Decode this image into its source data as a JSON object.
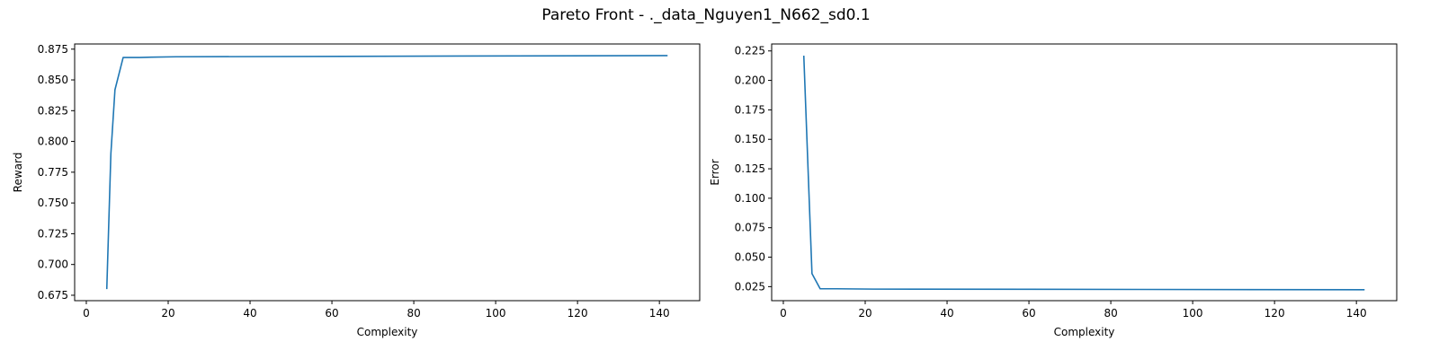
{
  "figure": {
    "title": "Pareto Front - ._data_Nguyen1_N662_sd0.1"
  },
  "colors": {
    "series": "#1f77b4",
    "axes": "#000000",
    "background": "#ffffff"
  },
  "chart_data": [
    {
      "type": "line",
      "title": "",
      "xlabel": "Complexity",
      "ylabel": "Reward",
      "xlim": [
        -2.85,
        149.85
      ],
      "ylim": [
        0.6706,
        0.8792
      ],
      "xticks": [
        0,
        20,
        40,
        60,
        80,
        100,
        120,
        140
      ],
      "yticks": [
        0.675,
        0.7,
        0.725,
        0.75,
        0.775,
        0.8,
        0.825,
        0.85,
        0.875
      ],
      "ytick_labels": [
        "0.675",
        "0.700",
        "0.725",
        "0.750",
        "0.775",
        "0.800",
        "0.825",
        "0.850",
        "0.875"
      ],
      "grid": false,
      "series": [
        {
          "x": [
            5,
            6,
            7,
            9,
            11,
            13,
            16,
            22,
            142
          ],
          "y": [
            0.68,
            0.79,
            0.842,
            0.8682,
            0.8682,
            0.8682,
            0.8685,
            0.8688,
            0.8698
          ]
        }
      ]
    },
    {
      "type": "line",
      "title": "",
      "xlabel": "Complexity",
      "ylabel": "Error",
      "xlim": [
        -2.85,
        149.85
      ],
      "ylim": [
        0.0131,
        0.2309
      ],
      "xticks": [
        0,
        20,
        40,
        60,
        80,
        100,
        120,
        140
      ],
      "yticks": [
        0.025,
        0.05,
        0.075,
        0.1,
        0.125,
        0.15,
        0.175,
        0.2,
        0.225
      ],
      "ytick_labels": [
        "0.025",
        "0.050",
        "0.075",
        "0.100",
        "0.125",
        "0.150",
        "0.175",
        "0.200",
        "0.225"
      ],
      "grid": false,
      "series": [
        {
          "x": [
            5,
            7,
            9,
            11,
            13,
            16,
            22,
            142
          ],
          "y": [
            0.221,
            0.036,
            0.0232,
            0.0232,
            0.0232,
            0.0231,
            0.0229,
            0.0224
          ]
        }
      ]
    }
  ]
}
